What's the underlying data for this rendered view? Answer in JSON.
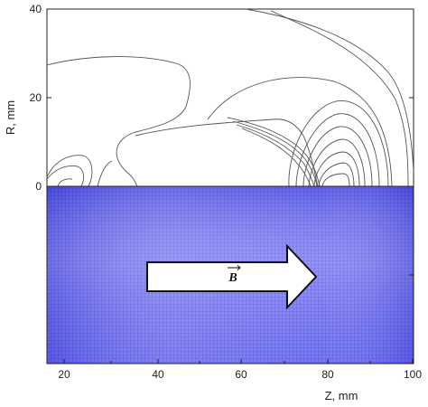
{
  "chart_data": {
    "type": "contour",
    "xlabel": "Z, mm",
    "ylabel": "R, mm",
    "xlim": [
      15,
      100
    ],
    "ylim": [
      0,
      40
    ],
    "x_ticks": [
      "20",
      "40",
      "60",
      "80",
      "100"
    ],
    "y_ticks": [
      "0",
      "20",
      "40"
    ],
    "grid": false,
    "lower_panel": {
      "description_fill": "blue mesh",
      "arrow_label": "B"
    }
  },
  "colors": {
    "mesh": "#5b5be8",
    "mesh_line": "#2a2acf",
    "contour": "#555555",
    "axis": "#222222"
  }
}
